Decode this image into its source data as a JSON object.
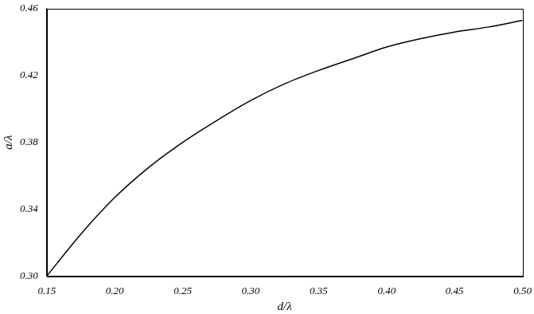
{
  "chart_data": {
    "type": "line",
    "x_label": "d/λ",
    "y_label": "a/λ",
    "x": [
      0.15,
      0.175,
      0.2,
      0.225,
      0.25,
      0.275,
      0.3,
      0.325,
      0.35,
      0.375,
      0.4,
      0.425,
      0.45,
      0.475,
      0.5
    ],
    "values": [
      0.3,
      0.325,
      0.347,
      0.365,
      0.38,
      0.393,
      0.405,
      0.415,
      0.423,
      0.43,
      0.437,
      0.442,
      0.446,
      0.449,
      0.453
    ],
    "color": "#000000",
    "marker": "none",
    "line_style": "solid",
    "xlim": [
      0.15,
      0.5
    ],
    "xticks": [
      0.15,
      {
        "value": 0.2,
        "label": "0.20"
      },
      0.25,
      {
        "value": 0.3,
        "label": "0.30"
      },
      0.35,
      {
        "value": 0.4,
        "label": "0.40"
      },
      0.45,
      {
        "value": 0.5,
        "label": "0.50"
      }
    ],
    "ylim": [
      0.3,
      0.46
    ],
    "yticks": [
      {
        "value": 0.3,
        "label": "0.30"
      },
      0.34,
      0.38,
      0.42,
      0.46
    ],
    "grid": false
  }
}
